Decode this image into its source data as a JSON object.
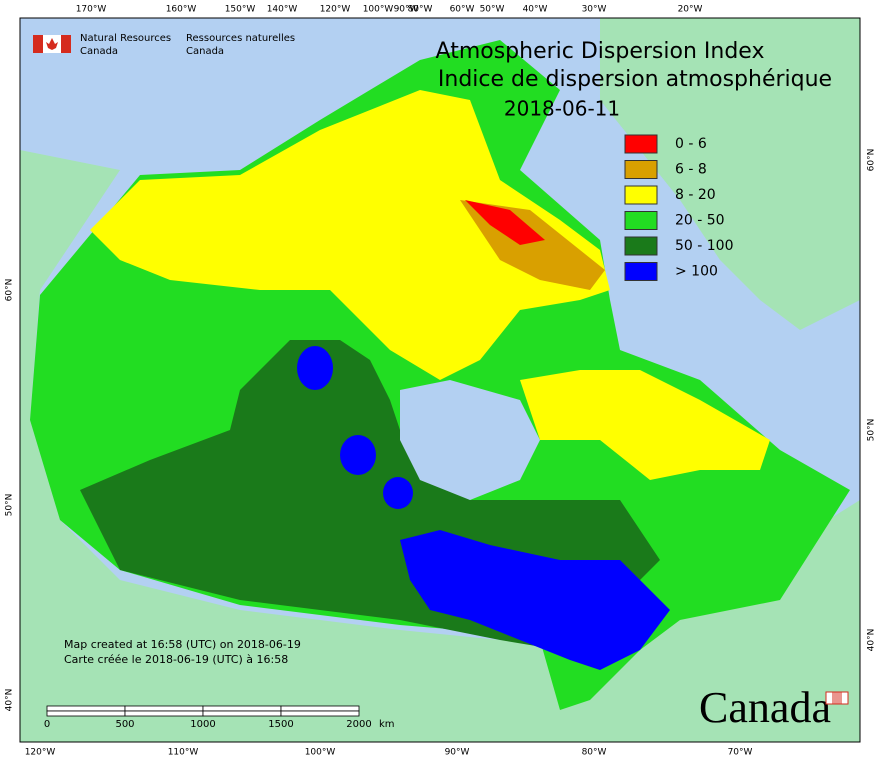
{
  "header": {
    "agency_en": [
      "Natural Resources",
      "Canada"
    ],
    "agency_fr": [
      "Ressources naturelles",
      "Canada"
    ]
  },
  "title": {
    "en": "Atmospheric Dispersion Index",
    "fr": "Indice de dispersion atmosphérique",
    "date": "2018-06-11"
  },
  "legend": [
    {
      "label": "0 - 6",
      "color": "#ff0000"
    },
    {
      "label": "6 - 8",
      "color": "#d9a000"
    },
    {
      "label": "8 - 20",
      "color": "#ffff00"
    },
    {
      "label": "20 - 50",
      "color": "#22dd22"
    },
    {
      "label": "50 - 100",
      "color": "#1a7a1a"
    },
    {
      "label": "> 100",
      "color": "#0000ff"
    }
  ],
  "graticule": {
    "top": [
      "170°W",
      "160°W",
      "150°W",
      "140°W",
      "120°W",
      "100°W",
      "90°W",
      "80°W",
      "60°W",
      "50°W",
      "40°W",
      "30°W",
      "20°W"
    ],
    "bottom": [
      "120°W",
      "110°W",
      "100°W",
      "90°W",
      "80°W",
      "70°W"
    ],
    "left": [
      "60°N",
      "50°N",
      "40°N"
    ],
    "right": [
      "60°N",
      "50°N",
      "40°N"
    ]
  },
  "scale_bar": {
    "labels": [
      "0",
      "500",
      "1000",
      "1500",
      "2000"
    ],
    "unit": "km"
  },
  "credits": [
    "Map created at 16:58 (UTC) on 2018-06-19",
    "Carte créée le 2018-06-19 (UTC) à 16:58"
  ],
  "wordmark": "Canada"
}
